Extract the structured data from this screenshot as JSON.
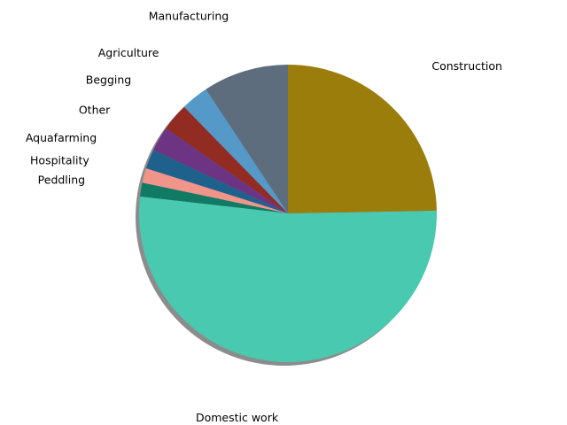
{
  "chart_data": {
    "type": "pie",
    "title": "",
    "shadow": true,
    "start_angle_deg": 90,
    "direction": "counterclockwise",
    "slices": [
      {
        "label": "Manufacturing",
        "value": 9.3,
        "color": "#5d6d7e"
      },
      {
        "label": "Agriculture",
        "value": 3.0,
        "color": "#5499c7"
      },
      {
        "label": "Begging",
        "value": 3.0,
        "color": "#922b21"
      },
      {
        "label": "Other",
        "value": 2.7,
        "color": "#6c3483"
      },
      {
        "label": "Aquafarming",
        "value": 2.1,
        "color": "#1f618d"
      },
      {
        "label": "Hospitality",
        "value": 1.6,
        "color": "#f1948a"
      },
      {
        "label": "Peddling",
        "value": 1.5,
        "color": "#117a65"
      },
      {
        "label": "Domestic work",
        "value": 52.1,
        "color": "#48c9b0"
      },
      {
        "label": "Construction",
        "value": 24.7,
        "color": "#9a7d0a"
      }
    ]
  }
}
